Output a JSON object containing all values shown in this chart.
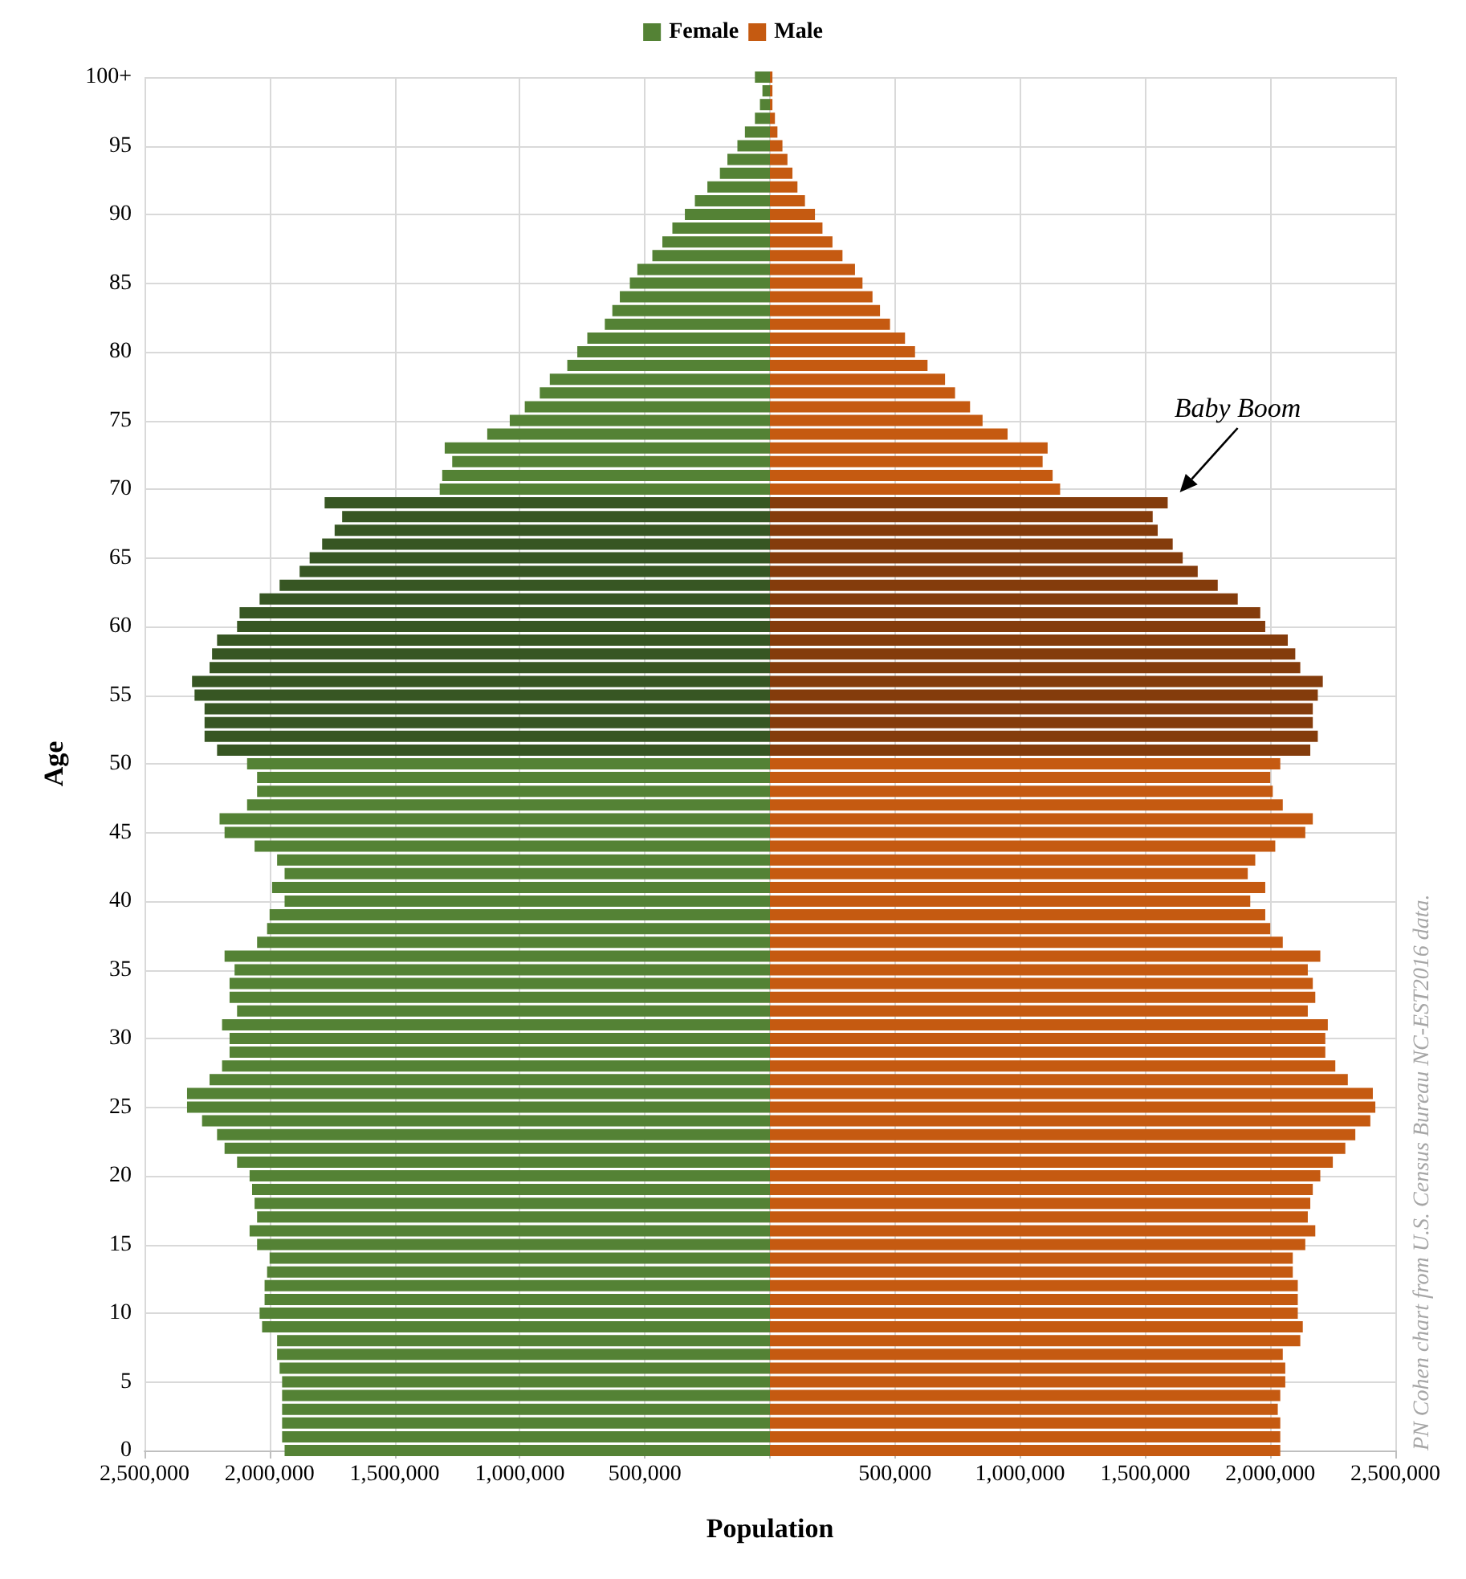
{
  "chart_data": {
    "type": "bar",
    "orientation": "horizontal",
    "stacked": true,
    "xlabel": "Population",
    "ylabel": "Age",
    "categories": [
      "100+",
      null,
      null,
      null,
      null,
      "95",
      null,
      null,
      null,
      null,
      "90",
      null,
      null,
      null,
      null,
      "85",
      null,
      null,
      null,
      null,
      "80",
      null,
      null,
      null,
      null,
      "75",
      null,
      null,
      null,
      null,
      "70",
      null,
      null,
      null,
      null,
      "65",
      null,
      null,
      null,
      null,
      "60",
      null,
      null,
      null,
      null,
      "55",
      null,
      null,
      null,
      null,
      "50",
      null,
      null,
      null,
      null,
      "45",
      null,
      null,
      null,
      null,
      "40",
      null,
      null,
      null,
      null,
      "35",
      null,
      null,
      null,
      null,
      "30",
      null,
      null,
      null,
      null,
      "25",
      null,
      null,
      null,
      null,
      "20",
      null,
      null,
      null,
      null,
      "15",
      null,
      null,
      null,
      null,
      "10",
      null,
      null,
      null,
      null,
      "5",
      null,
      null,
      null,
      null,
      "0"
    ],
    "series": [
      {
        "name": "Female",
        "color": "#548235",
        "values": [
          -60000,
          -30000,
          -40000,
          -60000,
          -100000,
          -130000,
          -170000,
          -200000,
          -250000,
          -300000,
          -340000,
          -390000,
          -430000,
          -470000,
          -530000,
          -560000,
          -600000,
          -630000,
          -660000,
          -730000,
          -770000,
          -810000,
          -880000,
          -920000,
          -980000,
          -1040000,
          -1130000,
          -1300000,
          -1270000,
          -1310000,
          -1320000,
          -1780000,
          -1710000,
          -1740000,
          -1790000,
          -1840000,
          -1880000,
          -1960000,
          -2040000,
          -2120000,
          -2130000,
          -2210000,
          -2230000,
          -2240000,
          -2310000,
          -2300000,
          -2260000,
          -2260000,
          -2260000,
          -2210000,
          -2090000,
          -2050000,
          -2050000,
          -2090000,
          -2200000,
          -2180000,
          -2060000,
          -1970000,
          -1940000,
          -1990000,
          -1940000,
          -2000000,
          -2010000,
          -2050000,
          -2180000,
          -2140000,
          -2160000,
          -2160000,
          -2130000,
          -2190000,
          -2160000,
          -2160000,
          -2190000,
          -2240000,
          -2330000,
          -2330000,
          -2270000,
          -2210000,
          -2180000,
          -2130000,
          -2080000,
          -2070000,
          -2060000,
          -2050000,
          -2080000,
          -2050000,
          -2000000,
          -2010000,
          -2020000,
          -2020000,
          -2040000,
          -2030000,
          -1970000,
          -1970000,
          -1960000,
          -1950000,
          -1950000,
          -1950000,
          -1950000,
          -1950000,
          -1940000
        ],
        "colors": [
          "#548235",
          "#548235",
          "#548235",
          "#548235",
          "#548235",
          "#548235",
          "#548235",
          "#548235",
          "#548235",
          "#548235",
          "#548235",
          "#548235",
          "#548235",
          "#548235",
          "#548235",
          "#548235",
          "#548235",
          "#548235",
          "#548235",
          "#548235",
          "#548235",
          "#548235",
          "#548235",
          "#548235",
          "#548235",
          "#548235",
          "#548235",
          "#548235",
          "#548235",
          "#548235",
          "#548235",
          "#375623",
          "#375623",
          "#375623",
          "#375623",
          "#375623",
          "#375623",
          "#375623",
          "#375623",
          "#375623",
          "#375623",
          "#375623",
          "#375623",
          "#375623",
          "#375623",
          "#375623",
          "#375623",
          "#375623",
          "#375623",
          "#375623",
          "#548235",
          "#548235",
          "#548235",
          "#548235",
          "#548235",
          "#548235",
          "#548235",
          "#548235",
          "#548235",
          "#548235",
          "#548235",
          "#548235",
          "#548235",
          "#548235",
          "#548235",
          "#548235",
          "#548235",
          "#548235",
          "#548235",
          "#548235",
          "#548235",
          "#548235",
          "#548235",
          "#548235",
          "#548235",
          "#548235",
          "#548235",
          "#548235",
          "#548235",
          "#548235",
          "#548235",
          "#548235",
          "#548235",
          "#548235",
          "#548235",
          "#548235",
          "#548235",
          "#548235",
          "#548235",
          "#548235",
          "#548235",
          "#548235",
          "#548235",
          "#548235",
          "#548235",
          "#548235",
          "#548235",
          "#548235",
          "#548235",
          "#548235",
          "#548235"
        ]
      },
      {
        "name": "Male",
        "color": "#c55a11",
        "values": [
          10000,
          10000,
          10000,
          20000,
          30000,
          50000,
          70000,
          90000,
          110000,
          140000,
          180000,
          210000,
          250000,
          290000,
          340000,
          370000,
          410000,
          440000,
          480000,
          540000,
          580000,
          630000,
          700000,
          740000,
          800000,
          850000,
          950000,
          1110000,
          1090000,
          1130000,
          1160000,
          1590000,
          1530000,
          1550000,
          1610000,
          1650000,
          1710000,
          1790000,
          1870000,
          1960000,
          1980000,
          2070000,
          2100000,
          2120000,
          2210000,
          2190000,
          2170000,
          2170000,
          2190000,
          2160000,
          2040000,
          2000000,
          2010000,
          2050000,
          2170000,
          2140000,
          2020000,
          1940000,
          1910000,
          1980000,
          1920000,
          1980000,
          2000000,
          2050000,
          2200000,
          2150000,
          2170000,
          2180000,
          2150000,
          2230000,
          2220000,
          2220000,
          2260000,
          2310000,
          2410000,
          2420000,
          2400000,
          2340000,
          2300000,
          2250000,
          2200000,
          2170000,
          2160000,
          2150000,
          2180000,
          2140000,
          2090000,
          2090000,
          2110000,
          2110000,
          2110000,
          2130000,
          2120000,
          2050000,
          2060000,
          2060000,
          2040000,
          2030000,
          2040000,
          2040000,
          2040000
        ],
        "colors": [
          "#c55a11",
          "#c55a11",
          "#c55a11",
          "#c55a11",
          "#c55a11",
          "#c55a11",
          "#c55a11",
          "#c55a11",
          "#c55a11",
          "#c55a11",
          "#c55a11",
          "#c55a11",
          "#c55a11",
          "#c55a11",
          "#c55a11",
          "#c55a11",
          "#c55a11",
          "#c55a11",
          "#c55a11",
          "#c55a11",
          "#c55a11",
          "#c55a11",
          "#c55a11",
          "#c55a11",
          "#c55a11",
          "#c55a11",
          "#c55a11",
          "#c55a11",
          "#c55a11",
          "#c55a11",
          "#c55a11",
          "#843c0c",
          "#843c0c",
          "#843c0c",
          "#843c0c",
          "#843c0c",
          "#843c0c",
          "#843c0c",
          "#843c0c",
          "#843c0c",
          "#843c0c",
          "#843c0c",
          "#843c0c",
          "#843c0c",
          "#843c0c",
          "#843c0c",
          "#843c0c",
          "#843c0c",
          "#843c0c",
          "#843c0c",
          "#c55a11",
          "#c55a11",
          "#c55a11",
          "#c55a11",
          "#c55a11",
          "#c55a11",
          "#c55a11",
          "#c55a11",
          "#c55a11",
          "#c55a11",
          "#c55a11",
          "#c55a11",
          "#c55a11",
          "#c55a11",
          "#c55a11",
          "#c55a11",
          "#c55a11",
          "#c55a11",
          "#c55a11",
          "#c55a11",
          "#c55a11",
          "#c55a11",
          "#c55a11",
          "#c55a11",
          "#c55a11",
          "#c55a11",
          "#c55a11",
          "#c55a11",
          "#c55a11",
          "#c55a11",
          "#c55a11",
          "#c55a11",
          "#c55a11",
          "#c55a11",
          "#c55a11",
          "#c55a11",
          "#c55a11",
          "#c55a11",
          "#c55a11",
          "#c55a11",
          "#c55a11",
          "#c55a11",
          "#c55a11",
          "#c55a11",
          "#c55a11",
          "#c55a11",
          "#c55a11",
          "#c55a11",
          "#c55a11",
          "#c55a11",
          "#c55a11"
        ]
      }
    ],
    "xlim": [
      -2500000,
      2500000
    ],
    "xticks": [
      {
        "value": -2500000,
        "label": "2,500,000"
      },
      {
        "value": -2000000,
        "label": "2,000,000"
      },
      {
        "value": -1500000,
        "label": "1,500,000"
      },
      {
        "value": -1000000,
        "label": "1,000,000"
      },
      {
        "value": -500000,
        "label": "500,000"
      },
      {
        "value": 0,
        "label": null
      },
      {
        "value": 500000,
        "label": "500,000"
      },
      {
        "value": 1000000,
        "label": "1,000,000"
      },
      {
        "value": 1500000,
        "label": "1,500,000"
      },
      {
        "value": 2000000,
        "label": "2,000,000"
      },
      {
        "value": 2500000,
        "label": "2,500,000"
      }
    ],
    "grid": true,
    "legend": "top",
    "annotations": [
      {
        "text": "Baby Boom",
        "x": 1600000,
        "y": "70"
      },
      "PN Cohen chart from U.S. Census Bureau NC-EST2016 data."
    ]
  }
}
